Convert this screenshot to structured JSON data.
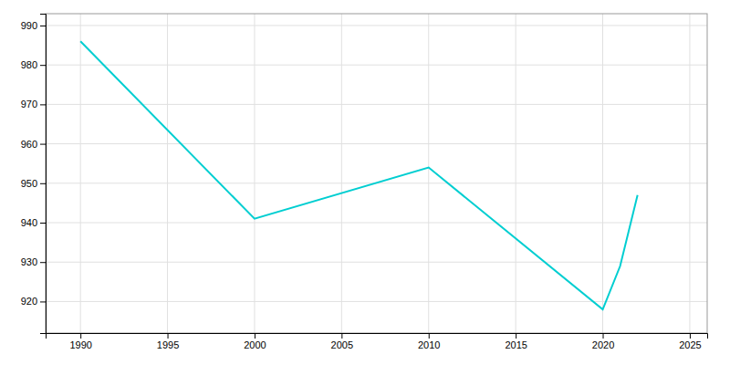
{
  "chart_data": {
    "type": "line",
    "x": [
      1990,
      2000,
      2010,
      2020,
      2021,
      2022
    ],
    "values": [
      986,
      941,
      954,
      918,
      929,
      947
    ],
    "color": "#00CED1",
    "xlim": [
      1988,
      2026
    ],
    "ylim": [
      912,
      993
    ],
    "xticks": [
      1990,
      1995,
      2000,
      2005,
      2010,
      2015,
      2020,
      2025
    ],
    "yticks": [
      920,
      930,
      940,
      950,
      960,
      970,
      980,
      990
    ],
    "grid": true
  }
}
